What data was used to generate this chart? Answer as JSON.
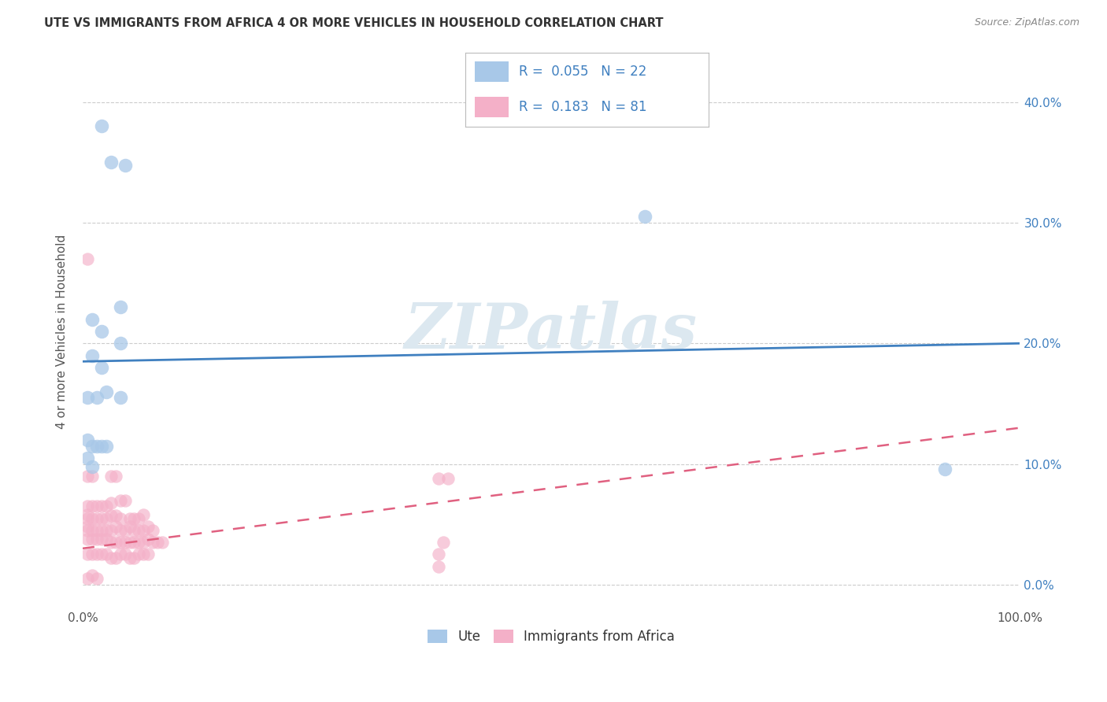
{
  "title": "UTE VS IMMIGRANTS FROM AFRICA 4 OR MORE VEHICLES IN HOUSEHOLD CORRELATION CHART",
  "source": "Source: ZipAtlas.com",
  "ylabel": "4 or more Vehicles in Household",
  "watermark": "ZIPatlas",
  "xlim": [
    0.0,
    1.0
  ],
  "ylim": [
    -0.02,
    0.44
  ],
  "xtick_vals": [
    0.0,
    1.0
  ],
  "xtick_labels": [
    "0.0%",
    "100.0%"
  ],
  "ytick_vals": [
    0.0,
    0.1,
    0.2,
    0.3,
    0.4
  ],
  "ytick_labels": [
    "0.0%",
    "10.0%",
    "20.0%",
    "30.0%",
    "40.0%"
  ],
  "legend_label1": "R =  0.055   N = 22",
  "legend_label2": "R =  0.183   N = 81",
  "legend_entry1": "Ute",
  "legend_entry2": "Immigrants from Africa",
  "blue_color": "#a8c8e8",
  "pink_color": "#f4b0c8",
  "line_blue": "#4080c0",
  "line_pink": "#e06080",
  "legend_text_color": "#4080c0",
  "right_axis_color": "#4080c0",
  "ute_points_x": [
    0.02,
    0.03,
    0.045,
    0.01,
    0.02,
    0.04,
    0.01,
    0.02,
    0.04,
    0.6,
    0.005,
    0.015,
    0.025,
    0.04,
    0.005,
    0.01,
    0.02,
    0.015,
    0.025,
    0.005,
    0.01,
    0.92
  ],
  "ute_points_y": [
    0.38,
    0.35,
    0.348,
    0.22,
    0.21,
    0.23,
    0.19,
    0.18,
    0.2,
    0.305,
    0.155,
    0.155,
    0.16,
    0.155,
    0.12,
    0.115,
    0.115,
    0.115,
    0.115,
    0.105,
    0.098,
    0.096
  ],
  "africa_points_x": [
    0.005,
    0.005,
    0.01,
    0.03,
    0.035,
    0.005,
    0.01,
    0.015,
    0.02,
    0.025,
    0.03,
    0.04,
    0.045,
    0.005,
    0.005,
    0.01,
    0.015,
    0.02,
    0.025,
    0.03,
    0.035,
    0.04,
    0.05,
    0.055,
    0.06,
    0.065,
    0.005,
    0.005,
    0.01,
    0.015,
    0.02,
    0.025,
    0.03,
    0.035,
    0.04,
    0.045,
    0.05,
    0.055,
    0.06,
    0.065,
    0.07,
    0.075,
    0.005,
    0.01,
    0.015,
    0.02,
    0.025,
    0.03,
    0.035,
    0.04,
    0.045,
    0.05,
    0.055,
    0.06,
    0.065,
    0.07,
    0.075,
    0.08,
    0.085,
    0.005,
    0.01,
    0.015,
    0.02,
    0.025,
    0.03,
    0.035,
    0.04,
    0.045,
    0.05,
    0.055,
    0.06,
    0.065,
    0.07,
    0.38,
    0.39,
    0.385,
    0.38,
    0.005,
    0.01,
    0.015,
    0.38
  ],
  "africa_points_y": [
    0.27,
    0.09,
    0.09,
    0.09,
    0.09,
    0.065,
    0.065,
    0.065,
    0.065,
    0.065,
    0.068,
    0.07,
    0.07,
    0.058,
    0.055,
    0.055,
    0.055,
    0.055,
    0.055,
    0.057,
    0.057,
    0.055,
    0.055,
    0.055,
    0.055,
    0.058,
    0.048,
    0.045,
    0.045,
    0.045,
    0.045,
    0.045,
    0.045,
    0.048,
    0.045,
    0.045,
    0.048,
    0.045,
    0.045,
    0.045,
    0.048,
    0.045,
    0.038,
    0.038,
    0.038,
    0.038,
    0.038,
    0.035,
    0.035,
    0.035,
    0.035,
    0.035,
    0.035,
    0.035,
    0.035,
    0.038,
    0.035,
    0.035,
    0.035,
    0.025,
    0.025,
    0.025,
    0.025,
    0.025,
    0.022,
    0.022,
    0.025,
    0.025,
    0.022,
    0.022,
    0.025,
    0.025,
    0.025,
    0.088,
    0.088,
    0.035,
    0.025,
    0.005,
    0.008,
    0.005,
    0.015
  ],
  "ute_line_x0": 0.0,
  "ute_line_x1": 1.0,
  "ute_line_y0": 0.185,
  "ute_line_y1": 0.2,
  "africa_line_x0": 0.0,
  "africa_line_x1": 1.0,
  "africa_line_y0": 0.03,
  "africa_line_y1": 0.13,
  "figsize": [
    14.06,
    8.92
  ],
  "dpi": 100
}
